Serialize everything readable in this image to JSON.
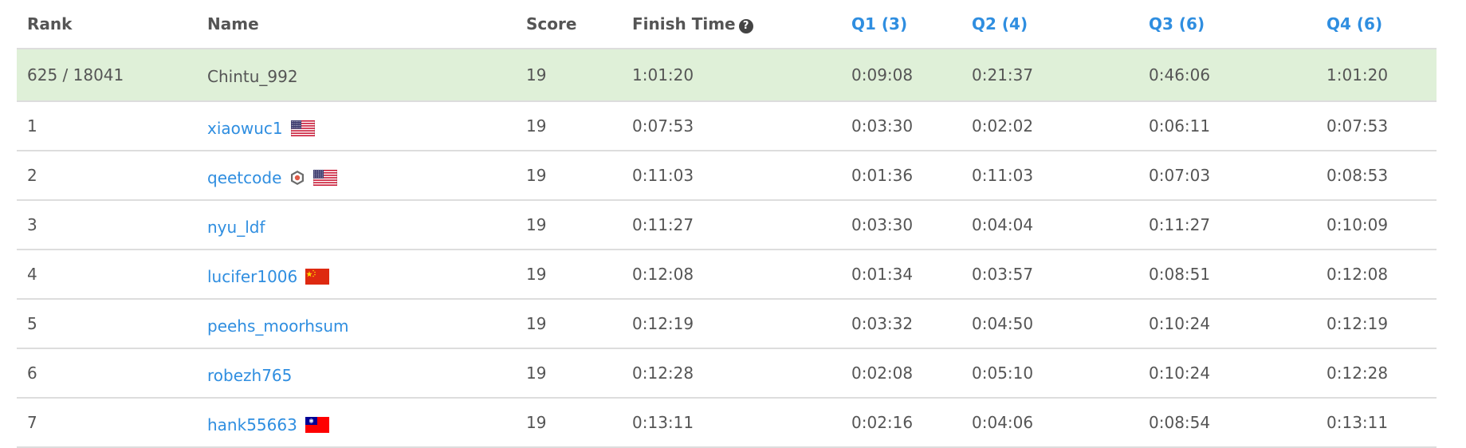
{
  "table": {
    "headers": {
      "rank": "Rank",
      "name": "Name",
      "score": "Score",
      "finish_time": "Finish Time",
      "help_icon": "?",
      "q1": "Q1 (3)",
      "q2": "Q2 (4)",
      "q3": "Q3 (6)",
      "q4": "Q4 (6)"
    },
    "current_user": {
      "rank": "625 / 18041",
      "name": "Chintu_992",
      "score": "19",
      "finish_time": "1:01:20",
      "q1": "0:09:08",
      "q2": "0:21:37",
      "q3": "0:46:06",
      "q4": "1:01:20"
    },
    "rows": [
      {
        "rank": "1",
        "name": "xiaowuc1",
        "score": "19",
        "finish_time": "0:07:53",
        "q1": "0:03:30",
        "q2": "0:02:02",
        "q3": "0:06:11",
        "q4": "0:07:53",
        "flag": "us-flag-icon",
        "badge": ""
      },
      {
        "rank": "2",
        "name": "qeetcode",
        "score": "19",
        "finish_time": "0:11:03",
        "q1": "0:01:36",
        "q2": "0:11:03",
        "q3": "0:07:03",
        "q4": "0:08:53",
        "flag": "us-flag-icon",
        "badge": "guardian-badge-icon"
      },
      {
        "rank": "3",
        "name": "nyu_ldf",
        "score": "19",
        "finish_time": "0:11:27",
        "q1": "0:03:30",
        "q2": "0:04:04",
        "q3": "0:11:27",
        "q4": "0:10:09",
        "flag": "",
        "badge": ""
      },
      {
        "rank": "4",
        "name": "lucifer1006",
        "score": "19",
        "finish_time": "0:12:08",
        "q1": "0:01:34",
        "q2": "0:03:57",
        "q3": "0:08:51",
        "q4": "0:12:08",
        "flag": "cn-flag-icon",
        "badge": ""
      },
      {
        "rank": "5",
        "name": "peehs_moorhsum",
        "score": "19",
        "finish_time": "0:12:19",
        "q1": "0:03:32",
        "q2": "0:04:50",
        "q3": "0:10:24",
        "q4": "0:12:19",
        "flag": "",
        "badge": ""
      },
      {
        "rank": "6",
        "name": "robezh765",
        "score": "19",
        "finish_time": "0:12:28",
        "q1": "0:02:08",
        "q2": "0:05:10",
        "q3": "0:10:24",
        "q4": "0:12:28",
        "flag": "",
        "badge": ""
      },
      {
        "rank": "7",
        "name": "hank55663",
        "score": "19",
        "finish_time": "0:13:11",
        "q1": "0:02:16",
        "q2": "0:04:06",
        "q3": "0:08:54",
        "q4": "0:13:11",
        "flag": "tw-flag-icon",
        "badge": ""
      }
    ]
  },
  "colors": {
    "link": "#2f8ee0",
    "text": "#555555",
    "highlight_row": "#dff0d8",
    "border": "#dddddd"
  }
}
